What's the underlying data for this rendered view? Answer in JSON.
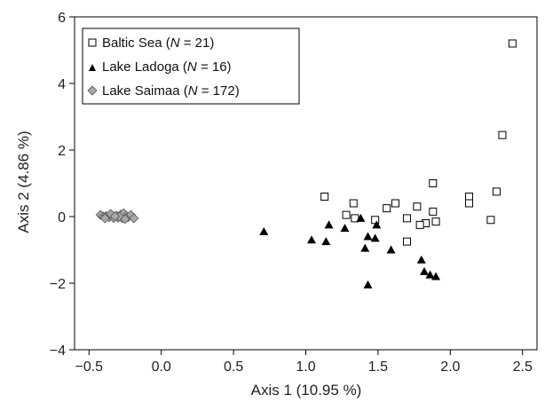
{
  "chart_data": {
    "type": "scatter",
    "title": "",
    "xlabel": "Axis 1 (10.95 %)",
    "ylabel": "Axis 2 (4.86 %)",
    "xlim": [
      -0.6,
      2.6
    ],
    "ylim": [
      -4,
      6
    ],
    "xticks": [
      -0.5,
      0.0,
      0.5,
      1.0,
      1.5,
      2.0,
      2.5
    ],
    "xtick_labels": [
      "−0.5",
      "0.0",
      "0.5",
      "1.0",
      "1.5",
      "2.0",
      "2.5"
    ],
    "yticks": [
      -4,
      -2,
      0,
      2,
      4,
      6
    ],
    "ytick_labels": [
      "−4",
      "−2",
      "0",
      "2",
      "4",
      "6"
    ],
    "grid": false,
    "legend_position": "top-left",
    "series": [
      {
        "name": "Baltic Sea",
        "n_label": "N",
        "n_value": "= 21)",
        "marker": "open-square",
        "color": "#000000",
        "points": [
          [
            2.43,
            5.2
          ],
          [
            2.36,
            2.45
          ],
          [
            2.32,
            0.75
          ],
          [
            2.28,
            -0.1
          ],
          [
            2.13,
            0.6
          ],
          [
            2.13,
            0.4
          ],
          [
            1.88,
            1.0
          ],
          [
            1.88,
            0.15
          ],
          [
            1.9,
            -0.15
          ],
          [
            1.83,
            -0.2
          ],
          [
            1.79,
            -0.25
          ],
          [
            1.77,
            0.3
          ],
          [
            1.7,
            -0.05
          ],
          [
            1.7,
            -0.75
          ],
          [
            1.62,
            0.4
          ],
          [
            1.56,
            0.25
          ],
          [
            1.48,
            -0.1
          ],
          [
            1.34,
            -0.05
          ],
          [
            1.33,
            0.4
          ],
          [
            1.28,
            0.05
          ],
          [
            1.13,
            0.6
          ]
        ]
      },
      {
        "name": "Lake Ladoga",
        "n_label": "N",
        "n_value": "= 16)",
        "marker": "filled-triangle",
        "color": "#000000",
        "points": [
          [
            0.71,
            -0.45
          ],
          [
            1.04,
            -0.7
          ],
          [
            1.14,
            -0.75
          ],
          [
            1.16,
            -0.25
          ],
          [
            1.27,
            -0.35
          ],
          [
            1.38,
            -0.05
          ],
          [
            1.41,
            -0.95
          ],
          [
            1.43,
            -0.6
          ],
          [
            1.48,
            -0.65
          ],
          [
            1.49,
            -0.25
          ],
          [
            1.43,
            -2.05
          ],
          [
            1.59,
            -1.0
          ],
          [
            1.8,
            -1.3
          ],
          [
            1.82,
            -1.65
          ],
          [
            1.86,
            -1.75
          ],
          [
            1.9,
            -1.8
          ]
        ]
      },
      {
        "name": "Lake Saimaa",
        "n_label": "N",
        "n_value": "= 172)",
        "marker": "grey-diamond",
        "color": "#a8a8a8",
        "points": [
          [
            -0.42,
            0.05
          ],
          [
            -0.4,
            0.0
          ],
          [
            -0.38,
            0.02
          ],
          [
            -0.36,
            -0.02
          ],
          [
            -0.34,
            0.04
          ],
          [
            -0.33,
            -0.04
          ],
          [
            -0.31,
            0.03
          ],
          [
            -0.3,
            -0.03
          ],
          [
            -0.28,
            0.06
          ],
          [
            -0.27,
            -0.05
          ],
          [
            -0.26,
            0.1
          ],
          [
            -0.24,
            0.02
          ],
          [
            -0.23,
            -0.02
          ],
          [
            -0.21,
            0.05
          ],
          [
            -0.19,
            -0.05
          ],
          [
            -0.35,
            0.08
          ],
          [
            -0.29,
            0.0
          ],
          [
            -0.25,
            -0.07
          ],
          [
            -0.39,
            -0.05
          ],
          [
            -0.32,
            0.01
          ]
        ]
      }
    ]
  }
}
